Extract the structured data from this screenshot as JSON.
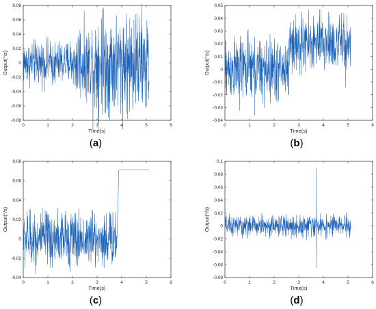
{
  "figure": {
    "panel_labels": [
      "(a)",
      "(b)",
      "(c)",
      "(d)"
    ],
    "line_color": "#1f63b8",
    "axis_color": "#262626",
    "grid": false,
    "panel_label_style": "(bold letter)"
  },
  "chart_data": [
    {
      "id": "a",
      "type": "line",
      "xlabel": "Time(s)",
      "ylabel": "Output(°/s)",
      "xlim": [
        0,
        6
      ],
      "ylim": [
        -0.08,
        0.08
      ],
      "xticks": [
        0,
        1,
        2,
        3,
        4,
        5,
        6
      ],
      "xtick_labels": [
        "0",
        "1",
        "2",
        "3",
        "4",
        "5",
        "6"
      ],
      "yticks": [
        -0.08,
        -0.06,
        -0.04,
        -0.02,
        0,
        0.02,
        0.04,
        0.06,
        0.08
      ],
      "ytick_labels": [
        "-0.08",
        "-0.06",
        "-0.04",
        "-0.02",
        "0",
        "0.02",
        "0.04",
        "0.06",
        "0.08"
      ],
      "x_end": 5.12,
      "segments": [
        {
          "t0": 0.0,
          "t1": 2.1,
          "mean": 0.0,
          "amp": 0.015,
          "spikes": [
            [
              0.6,
              0.025
            ],
            [
              1.3,
              -0.028
            ],
            [
              1.9,
              0.03
            ]
          ]
        },
        {
          "t0": 2.1,
          "t1": 2.8,
          "mean": 0.0,
          "amp": 0.025,
          "spikes": [
            [
              2.3,
              0.045
            ],
            [
              2.6,
              -0.04
            ]
          ]
        },
        {
          "t0": 2.8,
          "t1": 5.12,
          "mean": 0.0,
          "amp": 0.035,
          "spikes": [
            [
              3.2,
              0.075
            ],
            [
              3.05,
              0.05
            ],
            [
              3.4,
              -0.065
            ],
            [
              3.65,
              -0.06
            ],
            [
              4.2,
              0.055
            ],
            [
              4.5,
              0.06
            ],
            [
              4.8,
              -0.05
            ],
            [
              4.0,
              -0.055
            ]
          ]
        }
      ]
    },
    {
      "id": "b",
      "type": "line",
      "xlabel": "Time(s)",
      "ylabel": "Output(°/s)",
      "xlim": [
        0,
        6
      ],
      "ylim": [
        -0.04,
        0.05
      ],
      "xticks": [
        0,
        1,
        2,
        3,
        4,
        5,
        6
      ],
      "xtick_labels": [
        "0",
        "1",
        "2",
        "3",
        "4",
        "5",
        "6"
      ],
      "yticks": [
        -0.04,
        -0.03,
        -0.02,
        -0.01,
        0,
        0.01,
        0.02,
        0.03,
        0.04,
        0.05
      ],
      "ytick_labels": [
        "-0.04",
        "-0.03",
        "-0.02",
        "-0.01",
        "0",
        "0.01",
        "0.02",
        "0.03",
        "0.04",
        "0.05"
      ],
      "x_end": 5.12,
      "segments": [
        {
          "t0": 0.0,
          "t1": 2.6,
          "mean": 0.0,
          "amp": 0.012,
          "spikes": [
            [
              0.6,
              -0.032
            ],
            [
              1.2,
              -0.036
            ],
            [
              1.6,
              -0.03
            ],
            [
              0.9,
              0.03
            ],
            [
              1.4,
              0.022
            ]
          ]
        },
        {
          "t0": 2.6,
          "t1": 5.12,
          "mean": 0.02,
          "amp": 0.011,
          "spikes": [
            [
              2.7,
              0.046
            ],
            [
              3.9,
              0.047
            ],
            [
              4.2,
              0.045
            ],
            [
              3.1,
              -0.005
            ],
            [
              4.9,
              -0.014
            ]
          ]
        }
      ]
    },
    {
      "id": "c",
      "type": "line",
      "xlabel": "Time(s)",
      "ylabel": "Output(°/s)",
      "xlim": [
        0,
        6
      ],
      "ylim": [
        -0.04,
        0.08
      ],
      "xticks": [
        0,
        1,
        2,
        3,
        4,
        5,
        6
      ],
      "xtick_labels": [
        "0",
        "1",
        "2",
        "3",
        "4",
        "5",
        "6"
      ],
      "yticks": [
        -0.04,
        -0.02,
        0,
        0.02,
        0.04,
        0.06,
        0.08
      ],
      "ytick_labels": [
        "-0.04",
        "-0.02",
        "0",
        "0.02",
        "0.04",
        "0.06",
        "0.08"
      ],
      "x_end": 5.12,
      "segments": [
        {
          "t0": 0.0,
          "t1": 3.82,
          "mean": 0.0,
          "amp": 0.014,
          "spikes": [
            [
              0.3,
              0.03
            ],
            [
              1.1,
              -0.03
            ],
            [
              1.4,
              0.032
            ],
            [
              2.2,
              -0.028
            ],
            [
              2.8,
              0.03
            ],
            [
              3.3,
              -0.03
            ]
          ]
        },
        {
          "t0": 3.88,
          "t1": 5.12,
          "mean": 0.071,
          "amp": 0.0,
          "spikes": []
        }
      ]
    },
    {
      "id": "d",
      "type": "line",
      "xlabel": "Time(s)",
      "ylabel": "Output(°/s)",
      "xlim": [
        0,
        6
      ],
      "ylim": [
        -0.08,
        0.1
      ],
      "xticks": [
        0,
        1,
        2,
        3,
        4,
        5,
        6
      ],
      "xtick_labels": [
        "0",
        "1",
        "2",
        "3",
        "4",
        "5",
        "6"
      ],
      "yticks": [
        -0.08,
        -0.06,
        -0.04,
        -0.02,
        0,
        0.02,
        0.04,
        0.06,
        0.08,
        0.1
      ],
      "ytick_labels": [
        "-0.08",
        "-0.06",
        "-0.04",
        "-0.02",
        "0",
        "0.02",
        "0.04",
        "0.06",
        "0.08",
        "0.1"
      ],
      "x_end": 5.12,
      "segments": [
        {
          "t0": 0.0,
          "t1": 5.12,
          "mean": 0.0,
          "amp": 0.008,
          "spikes": [
            [
              3.72,
              0.09
            ],
            [
              3.73,
              -0.065
            ],
            [
              1.5,
              0.02
            ],
            [
              2.7,
              -0.02
            ],
            [
              4.4,
              0.018
            ]
          ]
        }
      ]
    }
  ]
}
